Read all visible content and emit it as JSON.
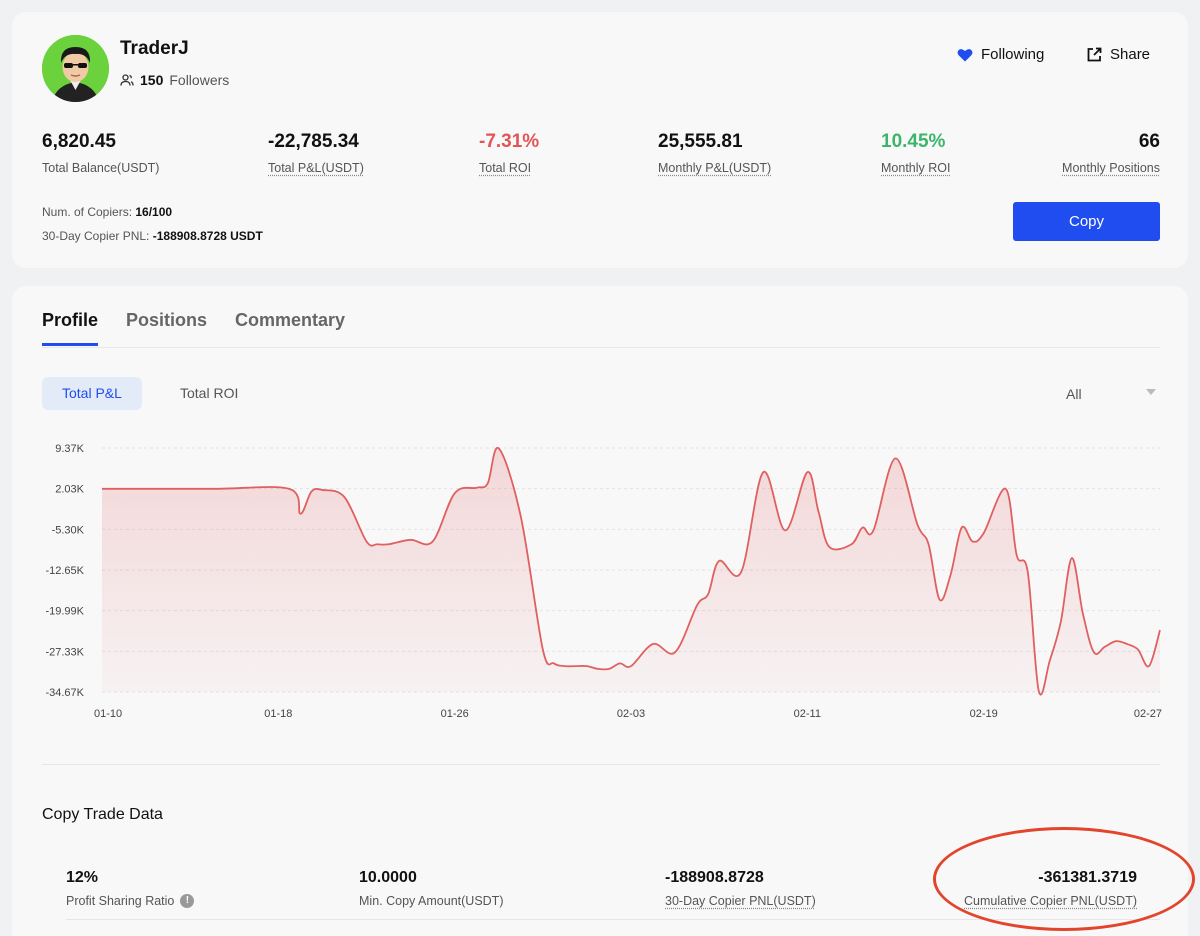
{
  "trader": {
    "name": "TraderJ",
    "followers_count": "150",
    "followers_label": "Followers"
  },
  "actions": {
    "following_label": "Following",
    "share_label": "Share",
    "copy_label": "Copy"
  },
  "stats": [
    {
      "value": "6,820.45",
      "label": "Total Balance(USDT)"
    },
    {
      "value": "-22,785.34",
      "label": "Total P&L(USDT)"
    },
    {
      "value": "-7.31%",
      "label": "Total ROI"
    },
    {
      "value": "25,555.81",
      "label": "Monthly P&L(USDT)"
    },
    {
      "value": "10.45%",
      "label": "Monthly ROI"
    },
    {
      "value": "66",
      "label": "Monthly Positions"
    }
  ],
  "copiers": {
    "num_label": "Num. of Copiers:",
    "num_value": "16/100",
    "pnl_label": "30-Day Copier PNL:",
    "pnl_value": "-188908.8728 USDT"
  },
  "tabs": [
    "Profile",
    "Positions",
    "Commentary"
  ],
  "chart_toggle": {
    "pnl": "Total P&L",
    "roi": "Total ROI",
    "range": "All"
  },
  "chart_data": {
    "type": "area",
    "color": "#e06060",
    "ylim": [
      -34.67,
      9.37
    ],
    "y_ticks": [
      "9.37K",
      "2.03K",
      "-5.30K",
      "-12.65K",
      "-19.99K",
      "-27.33K",
      "-34.67K"
    ],
    "x_ticks": [
      "01-10",
      "01-18",
      "01-26",
      "02-03",
      "02-11",
      "02-19",
      "02-27"
    ],
    "x_range": [
      0,
      48
    ],
    "x": [
      0,
      5,
      8.5,
      9,
      9.5,
      10,
      11,
      12,
      12.5,
      13,
      14,
      15,
      16,
      17,
      17.5,
      18,
      19,
      20,
      20.5,
      21,
      21.5,
      22,
      22.5,
      23,
      23.5,
      24,
      25,
      26,
      27,
      27.5,
      28,
      29,
      30,
      31,
      32,
      32.5,
      33,
      34,
      34.5,
      35,
      36,
      37,
      37.5,
      38,
      38.5,
      39,
      39.5,
      40,
      41,
      41.5,
      42,
      42.5,
      43,
      43.5,
      44,
      44.5,
      45,
      45.5,
      46,
      46.5,
      47,
      47.5,
      48
    ],
    "y": [
      2.0,
      2.0,
      2.0,
      -2.5,
      1.5,
      1.8,
      0.5,
      -7.5,
      -8.0,
      -8.0,
      -7.2,
      -7.5,
      1.2,
      2.2,
      3.0,
      9.3,
      -3.0,
      -27.0,
      -29.5,
      -30.0,
      -30.0,
      -30.0,
      -30.5,
      -30.5,
      -29.5,
      -30.0,
      -26.0,
      -27.5,
      -19.0,
      -17.0,
      -11.0,
      -13.0,
      5.0,
      -5.5,
      5.0,
      -2.0,
      -8.5,
      -8.0,
      -5.0,
      -5.5,
      7.5,
      -4.5,
      -8.0,
      -18.0,
      -13.5,
      -5.0,
      -7.5,
      -6.0,
      2.0,
      -10.0,
      -13.0,
      -34.5,
      -29.0,
      -22.0,
      -10.5,
      -20.5,
      -27.5,
      -26.5,
      -25.5,
      -26.0,
      -27.0,
      -30.0,
      -23.5
    ]
  },
  "copy_trade": {
    "title": "Copy Trade Data",
    "items": [
      {
        "value": "12%",
        "label": "Profit Sharing Ratio"
      },
      {
        "value": "10.0000",
        "label": "Min. Copy Amount(USDT)"
      },
      {
        "value": "-188908.8728",
        "label": "30-Day Copier PNL(USDT)"
      },
      {
        "value": "-361381.3719",
        "label": "Cumulative Copier PNL(USDT)"
      }
    ]
  },
  "icons": {
    "follow": "heart-icon",
    "share": "share-icon",
    "followers": "users-icon",
    "info": "info-icon"
  },
  "colors": {
    "accent": "#1f4df0",
    "negative": "#e05555",
    "positive": "#3cb56a",
    "annotation": "#e2442c"
  }
}
